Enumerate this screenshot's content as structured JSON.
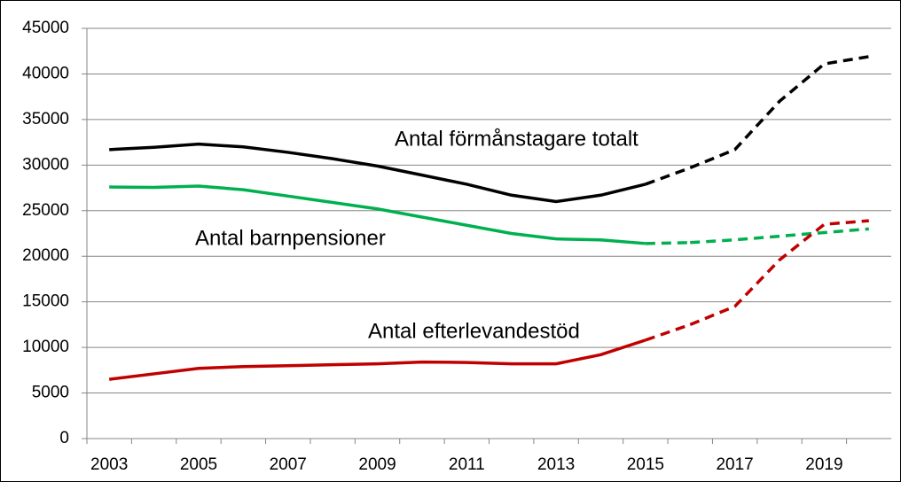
{
  "chart_data": {
    "type": "line",
    "categories": [
      "2003",
      null,
      "2005",
      null,
      "2007",
      null,
      "2009",
      null,
      "2011",
      null,
      "2013",
      null,
      "2015",
      null,
      "2017",
      null,
      "2019",
      null
    ],
    "series": [
      {
        "name": "Antal förmånstagare totalt",
        "color": "#000000",
        "dashed_from": 12,
        "values": [
          31700,
          31950,
          32300,
          32000,
          31400,
          30700,
          29900,
          28900,
          27900,
          26700,
          26000,
          26700,
          27900,
          29700,
          31700,
          37000,
          41100,
          41900
        ]
      },
      {
        "name": "Antal barnpensioner",
        "color": "#00b050",
        "dashed_from": 12,
        "values": [
          27600,
          27550,
          27700,
          27300,
          26600,
          25900,
          25200,
          24300,
          23400,
          22500,
          21900,
          21800,
          21400,
          21500,
          21800,
          22200,
          22600,
          23000
        ]
      },
      {
        "name": "Antal efterlevandestöd",
        "color": "#c00000",
        "dashed_from": 12,
        "values": [
          6500,
          7100,
          7700,
          7900,
          8000,
          8100,
          8200,
          8400,
          8350,
          8200,
          8200,
          9200,
          10800,
          12500,
          14500,
          19600,
          23500,
          23900
        ]
      }
    ],
    "ylim": [
      0,
      45000
    ],
    "yticks": [
      0,
      5000,
      10000,
      15000,
      20000,
      25000,
      30000,
      35000,
      40000,
      45000
    ],
    "grid": true
  }
}
